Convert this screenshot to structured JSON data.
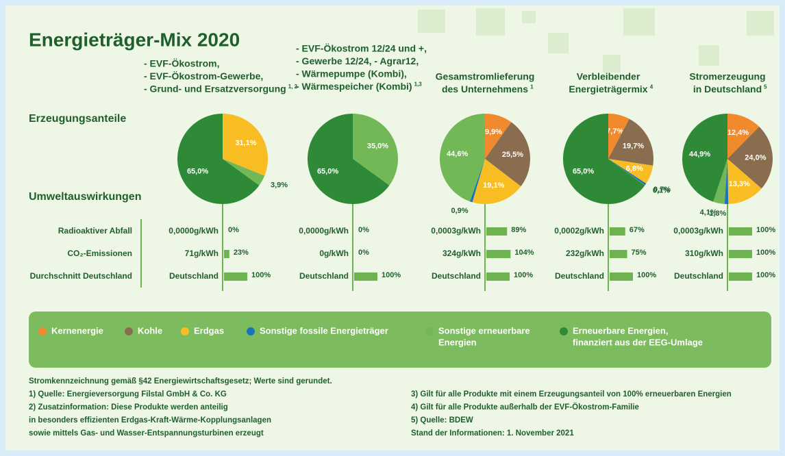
{
  "title": "Energieträger-Mix 2020",
  "row_labels": {
    "shares": "Erzeugungsanteile",
    "impact": "Umweltauswirkungen"
  },
  "impact_rows": [
    "Radioaktiver Abfall",
    "CO₂-Emissionen",
    "Durchschnitt Deutschland"
  ],
  "legend": [
    {
      "name": [
        "Kernenergie"
      ],
      "color": "#f08a2c"
    },
    {
      "name": [
        "Kohle"
      ],
      "color": "#8a6c4e"
    },
    {
      "name": [
        "Erdgas"
      ],
      "color": "#f9bd24"
    },
    {
      "name": [
        "Sonstige fossile Energieträger"
      ],
      "color": "#1a74b9"
    },
    {
      "name": [
        "Sonstige erneuerbare",
        "Energien"
      ],
      "color": "#72b856"
    },
    {
      "name": [
        "Erneuerbare Energien,",
        "finanziert aus der EEG-Umlage"
      ],
      "color": "#2f8a38"
    }
  ],
  "columns": [
    {
      "heading": [
        "- EVF-Ökostrom,",
        "- EVF-Ökostrom-Gewerbe,",
        "- Grund- und Ersatzversorgung"
      ],
      "footnote": "1, 2",
      "slices": [
        {
          "value": 31.1,
          "label": "31,1%",
          "color": "#f9bd24"
        },
        {
          "value": 3.9,
          "label": "3,9%",
          "color": "#72b856"
        },
        {
          "value": 65.0,
          "label": "65,0%",
          "color": "#2f8a38"
        }
      ],
      "impact": [
        {
          "text": "0,0000g/kWh",
          "value": 0,
          "label": "0%"
        },
        {
          "text": "71g/kWh",
          "value": 23,
          "label": "23%"
        },
        {
          "text": "Deutschland",
          "value": 100,
          "label": "100%"
        }
      ]
    },
    {
      "heading": [
        "- EVF-Ökostrom 12/24 und +,",
        "- Gewerbe 12/24, - Agrar12,",
        "- Wärmepumpe (Kombi),",
        "- Wärmespeicher (Kombi)"
      ],
      "footnote": "1,3",
      "slices": [
        {
          "value": 35.0,
          "label": "35,0%",
          "color": "#72b856"
        },
        {
          "value": 65.0,
          "label": "65,0%",
          "color": "#2f8a38"
        }
      ],
      "impact": [
        {
          "text": "0,0000g/kWh",
          "value": 0,
          "label": "0%"
        },
        {
          "text": "0g/kWh",
          "value": 0,
          "label": "0%"
        },
        {
          "text": "Deutschland",
          "value": 100,
          "label": "100%"
        }
      ]
    },
    {
      "heading": [
        "Gesamstromlieferung",
        "des Unternehmens"
      ],
      "footnote": "1",
      "slices": [
        {
          "value": 9.9,
          "label": "9,9%",
          "color": "#f08a2c"
        },
        {
          "value": 25.5,
          "label": "25,5%",
          "color": "#8a6c4e"
        },
        {
          "value": 19.1,
          "label": "19,1%",
          "color": "#f9bd24"
        },
        {
          "value": 0.9,
          "label": "0,9%",
          "color": "#1a74b9"
        },
        {
          "value": 44.6,
          "label": "44,6%",
          "color": "#72b856"
        }
      ],
      "impact": [
        {
          "text": "0,0003g/kWh",
          "value": 89,
          "label": "89%"
        },
        {
          "text": "324g/kWh",
          "value": 104,
          "label": "104%"
        },
        {
          "text": "Deutschland",
          "value": 100,
          "label": "100%"
        }
      ]
    },
    {
      "heading": [
        "Verbleibender",
        "Energieträgermix"
      ],
      "footnote": "4",
      "slices": [
        {
          "value": 7.7,
          "label": "7,7%",
          "color": "#f08a2c"
        },
        {
          "value": 19.7,
          "label": "19,7%",
          "color": "#8a6c4e"
        },
        {
          "value": 6.8,
          "label": "6,8%",
          "color": "#f9bd24"
        },
        {
          "value": 0.7,
          "label": "0,7%",
          "color": "#1a74b9"
        },
        {
          "value": 0.1,
          "label": "0,1%",
          "color": "#72b856"
        },
        {
          "value": 65.0,
          "label": "65,0%",
          "color": "#2f8a38"
        }
      ],
      "impact": [
        {
          "text": "0,0002g/kWh",
          "value": 67,
          "label": "67%"
        },
        {
          "text": "232g/kWh",
          "value": 75,
          "label": "75%"
        },
        {
          "text": "Deutschland",
          "value": 100,
          "label": "100%"
        }
      ]
    },
    {
      "heading": [
        "Stromerzeugung",
        "in Deutschland"
      ],
      "footnote": "5",
      "slices": [
        {
          "value": 12.4,
          "label": "12,4%",
          "color": "#f08a2c"
        },
        {
          "value": 24.0,
          "label": "24,0%",
          "color": "#8a6c4e"
        },
        {
          "value": 13.3,
          "label": "13,3%",
          "color": "#f9bd24"
        },
        {
          "value": 1.3,
          "label": "1,3%",
          "color": "#1a74b9"
        },
        {
          "value": 4.1,
          "label": "4,1%",
          "color": "#72b856"
        },
        {
          "value": 44.9,
          "label": "44,9%",
          "color": "#2f8a38"
        }
      ],
      "impact": [
        {
          "text": "0,0003g/kWh",
          "value": 100,
          "label": "100%"
        },
        {
          "text": "310g/kWh",
          "value": 100,
          "label": "100%"
        },
        {
          "text": "Deutschland",
          "value": 100,
          "label": "100%"
        }
      ]
    }
  ],
  "notes_left": [
    "Stromkennzeichnung gemäß §42 Energiewirtschaftsgesetz; Werte sind gerundet.",
    "1) Quelle: Energieversorgung Filstal GmbH & Co. KG",
    "2) Zusatzinformation: Diese Produkte werden anteilig",
    "in besonders effizienten Erdgas-Kraft-Wärme-Kopplungsanlagen",
    "sowie mittels Gas- und Wasser-Entspannungsturbinen erzeugt"
  ],
  "notes_right": [
    "3) Gilt für alle Produkte mit einem Erzeugungsanteil von 100% erneuerbaren Energien",
    "4) Gilt für alle Produkte außerhalb der EVF-Ökostrom-Familie",
    "5) Quelle: BDEW",
    "Stand der Informationen: 1. November 2021"
  ]
}
